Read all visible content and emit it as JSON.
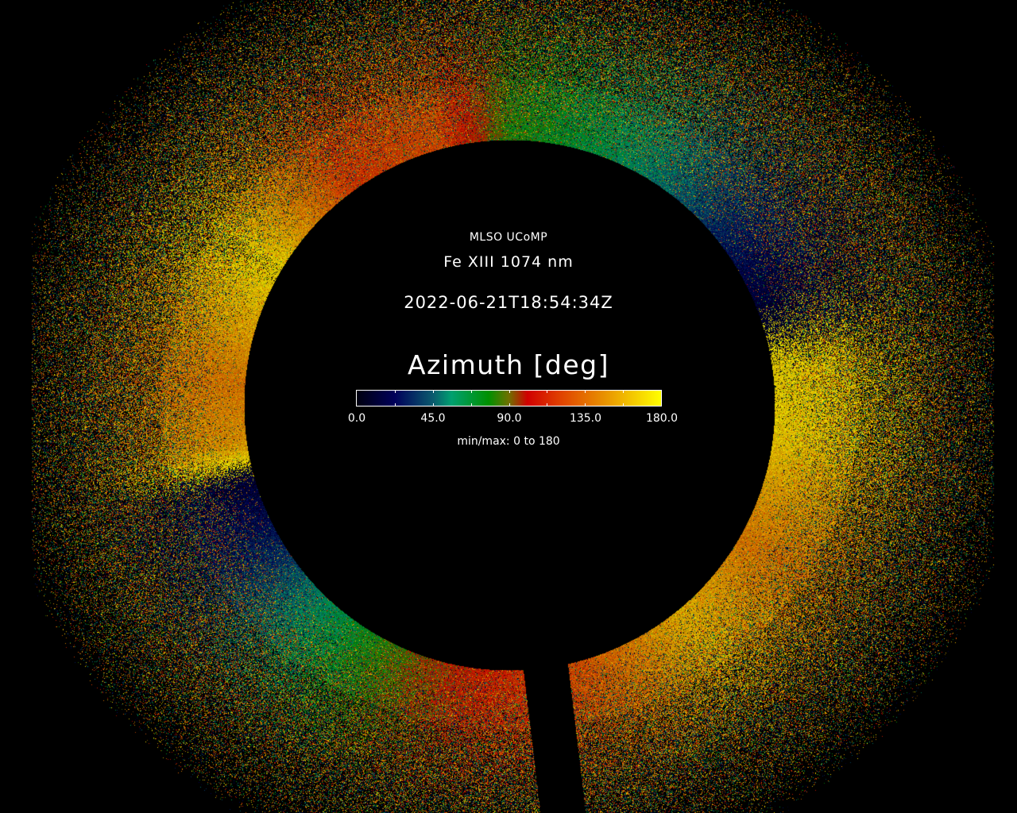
{
  "header": {
    "observatory": "MLSO UCoMP",
    "line": "Fe XIII 1074 nm",
    "timestamp": "2022-06-21T18:54:34Z"
  },
  "colorbar": {
    "title": "Azimuth [deg]",
    "range": [
      0,
      180
    ],
    "tick_labels": [
      "0.0",
      "45.0",
      "90.0",
      "135.0",
      "180.0"
    ],
    "minmax_label": "min/max: 0 to 180",
    "colors": [
      "#00000f",
      "#00005a",
      "#0a5a6e",
      "#00a070",
      "#009000",
      "#707000",
      "#d00000",
      "#e04000",
      "#e89000",
      "#ffff00"
    ]
  }
}
